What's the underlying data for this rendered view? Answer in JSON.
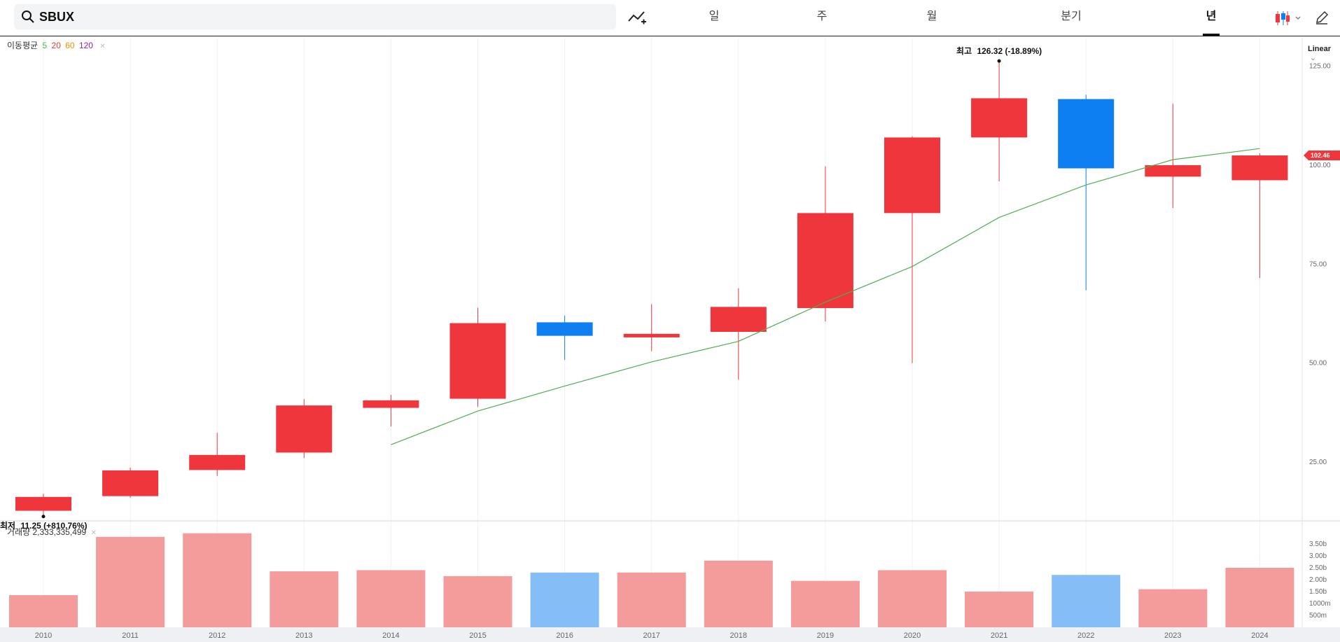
{
  "search": {
    "value": "SBUX"
  },
  "tabs": [
    {
      "label": "일",
      "active": false
    },
    {
      "label": "주",
      "active": false
    },
    {
      "label": "월",
      "active": false
    },
    {
      "label": "분기",
      "active": false
    },
    {
      "label": "년",
      "active": true
    }
  ],
  "icons": {
    "search": "search-icon",
    "indicator": "add-indicator-icon",
    "chart_type": "candlestick-icon",
    "edit": "pencil-icon"
  },
  "moving_average_legend": {
    "label": "이동평균",
    "periods": [
      {
        "value": "5",
        "color": "#4caf50"
      },
      {
        "value": "20",
        "color": "#e53935"
      },
      {
        "value": "60",
        "color": "#fb8c00"
      },
      {
        "value": "120",
        "color": "#8e24aa"
      }
    ]
  },
  "scale_label": "Linear",
  "volume_legend": {
    "label": "거래량",
    "value": "2,333,335,499"
  },
  "colors": {
    "up": "#ef363c",
    "down": "#0d7ff0",
    "ma5": "#4caf50",
    "volume_up": "#f49b9b",
    "volume_down": "#85bdf6"
  },
  "chart_data": {
    "type": "candlestick",
    "x": [
      "2010",
      "2011",
      "2012",
      "2013",
      "2014",
      "2015",
      "2016",
      "2017",
      "2018",
      "2019",
      "2020",
      "2021",
      "2022",
      "2023",
      "2024"
    ],
    "open": [
      12.7,
      16.4,
      23.0,
      27.4,
      38.7,
      41.0,
      60.3,
      56.5,
      57.9,
      63.9,
      87.9,
      107.0,
      116.7,
      97.1,
      96.2
    ],
    "high": [
      17.0,
      23.6,
      32.4,
      40.9,
      42.0,
      64.0,
      62.0,
      64.9,
      68.9,
      99.7,
      107.3,
      126.32,
      117.8,
      115.5,
      103.0
    ],
    "low": [
      11.25,
      16.0,
      21.5,
      26.0,
      34.0,
      39.0,
      50.8,
      53.0,
      45.8,
      60.5,
      50.0,
      95.9,
      68.4,
      89.2,
      71.5
    ],
    "close": [
      16.2,
      22.9,
      26.8,
      39.3,
      40.6,
      60.1,
      56.9,
      57.4,
      64.2,
      87.9,
      107.0,
      116.9,
      99.2,
      100.0,
      102.46
    ],
    "ma5": [
      null,
      null,
      null,
      null,
      29.4,
      37.9,
      44.2,
      50.3,
      55.5,
      65.4,
      74.4,
      86.8,
      95.0,
      101.4,
      104.2
    ],
    "volume": [
      1.35,
      3.8,
      3.95,
      2.35,
      2.4,
      2.15,
      2.3,
      2.3,
      2.8,
      1.95,
      2.4,
      1.5,
      2.2,
      1.6,
      2.5
    ],
    "volume_unit": "billion shares",
    "price_axis": {
      "ticks": [
        "125.00",
        "100.00",
        "75.00",
        "50.00",
        "25.00"
      ],
      "range": [
        10.5,
        132
      ]
    },
    "volume_axis": {
      "ticks": [
        "3.50b",
        "3.00b",
        "2.50b",
        "2.00b",
        "1.50b",
        "1000m",
        "500m"
      ],
      "range": [
        0,
        4.0
      ]
    },
    "last_price": "102.46",
    "high_annotation": {
      "label": "최고",
      "value": "126.32 (-18.89%)",
      "year": "2021"
    },
    "low_annotation": {
      "label": "최저",
      "value": "11.25 (+810.76%)",
      "year": "2010"
    },
    "grid": true
  }
}
